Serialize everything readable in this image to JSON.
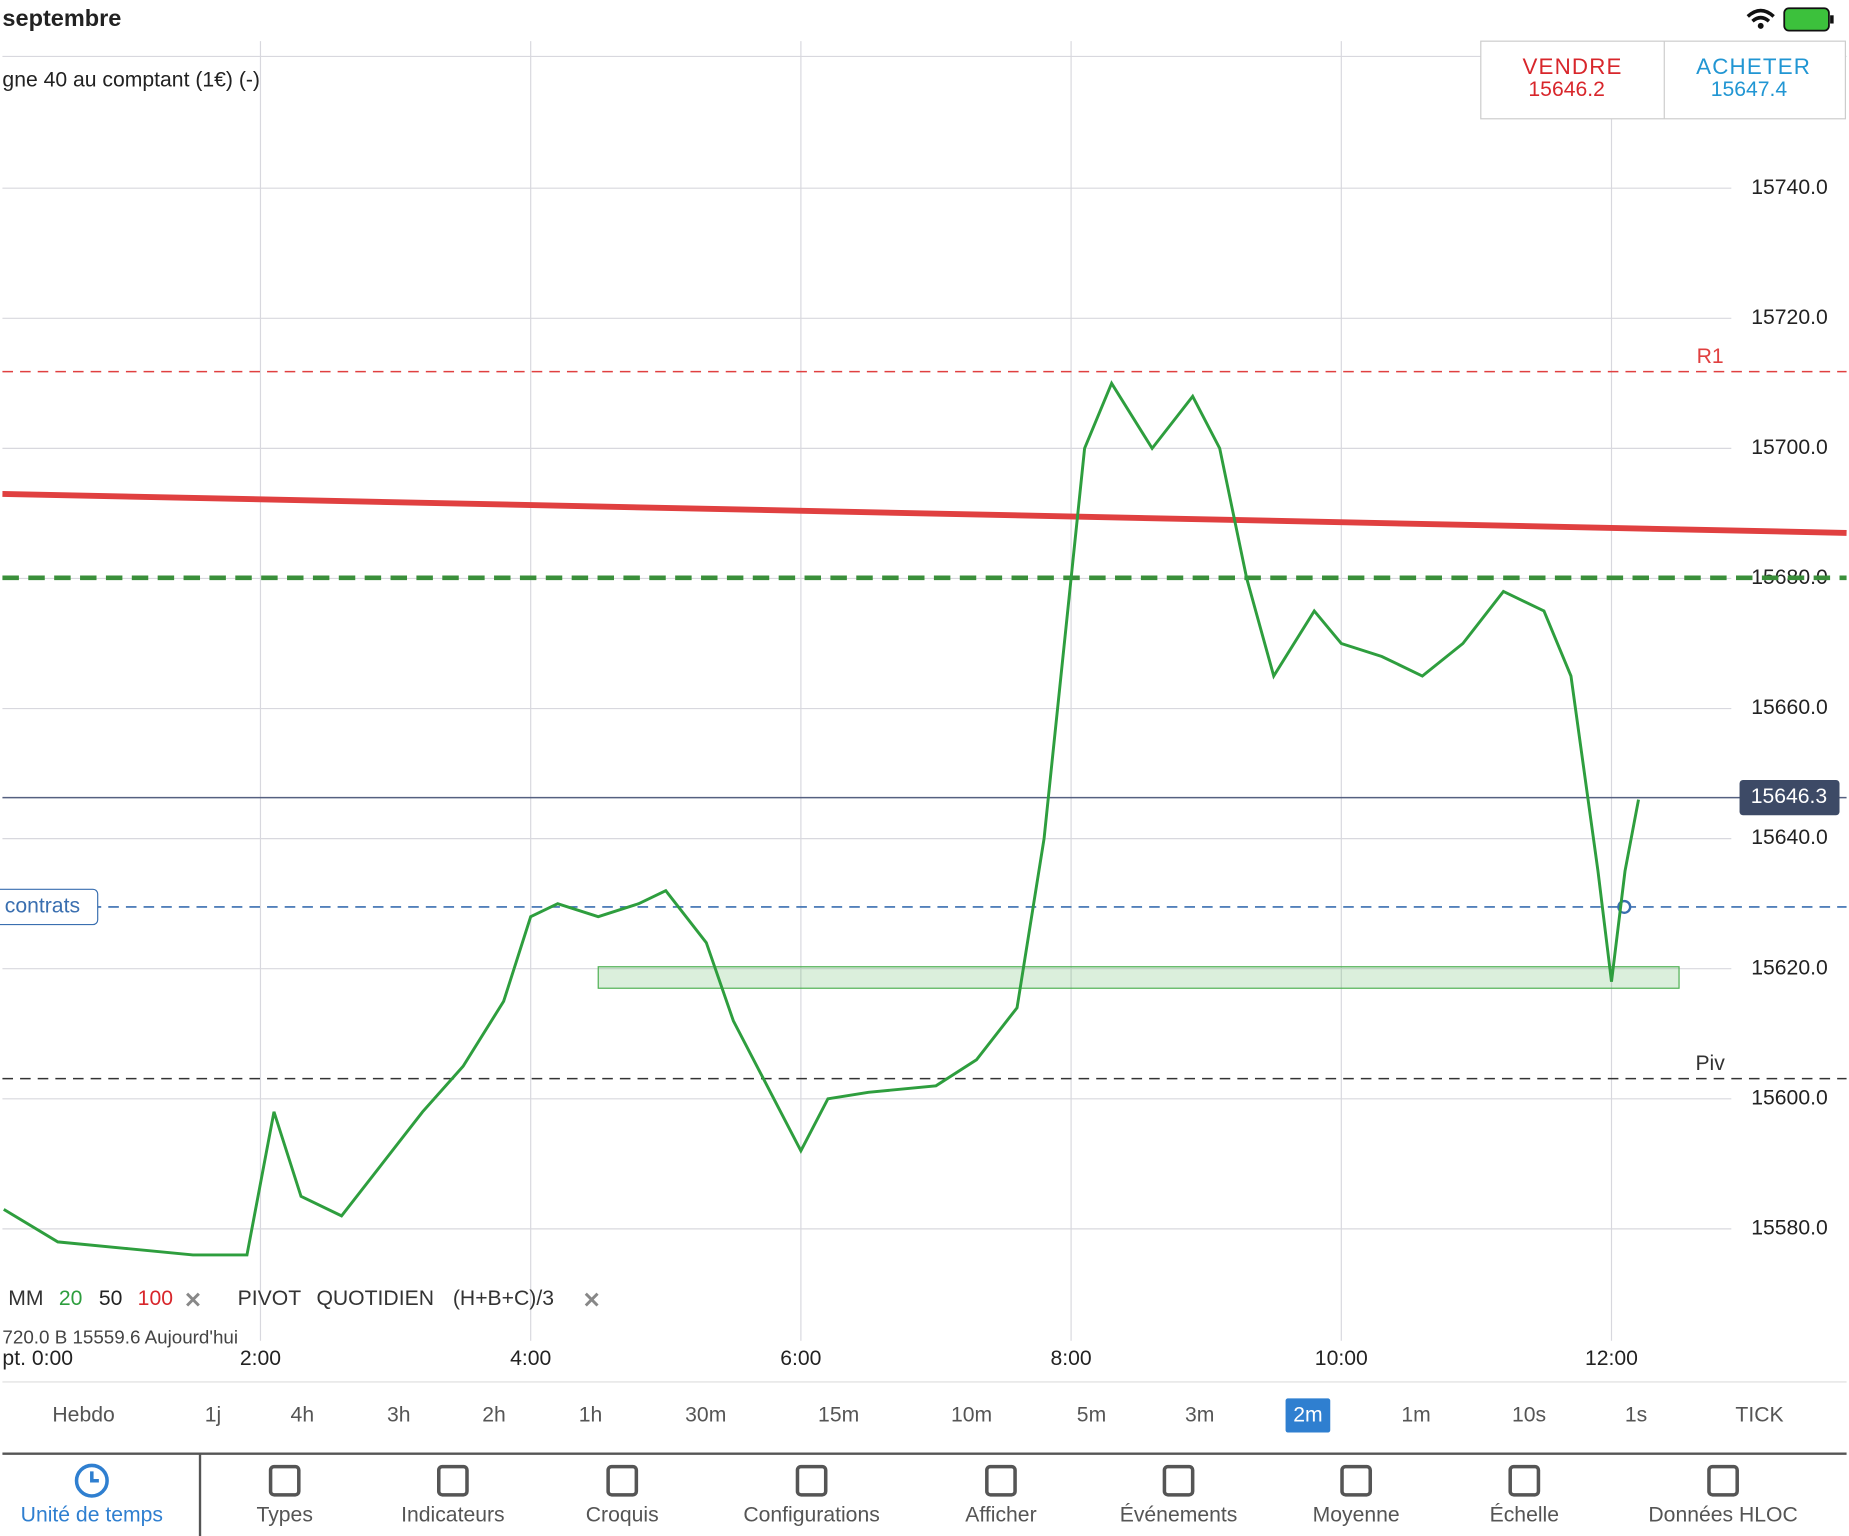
{
  "status_bar": {
    "date": "septembre"
  },
  "header": {
    "instrument": "gne 40 au comptant (1€) (-)",
    "ohlc_info": "720.0    B 15559.6    Aujourd'hui"
  },
  "quote": {
    "sell_label": "VENDRE",
    "sell": "15646.2",
    "buy_label": "ACHETER",
    "buy": "15647.4"
  },
  "chart_data": {
    "type": "line",
    "x": [
      0.1,
      0.5,
      1.0,
      1.5,
      1.9,
      2.1,
      2.3,
      2.6,
      2.9,
      3.2,
      3.5,
      3.8,
      4.0,
      4.2,
      4.5,
      4.8,
      5.0,
      5.3,
      5.5,
      5.8,
      6.0,
      6.2,
      6.5,
      7.0,
      7.3,
      7.6,
      7.8,
      8.0,
      8.1,
      8.3,
      8.6,
      8.9,
      9.1,
      9.3,
      9.5,
      9.8,
      10.0,
      10.3,
      10.6,
      10.9,
      11.2,
      11.5,
      11.7,
      11.9,
      12.0,
      12.1,
      12.2
    ],
    "series": [
      {
        "color": "#2e9e3e",
        "values": [
          15583,
          15578,
          15577,
          15576,
          15576,
          15598,
          15585,
          15582,
          15590,
          15598,
          15605,
          15615,
          15628,
          15630,
          15628,
          15630,
          15632,
          15624,
          15612,
          15600,
          15592,
          15600,
          15601,
          15602,
          15606,
          15614,
          15640,
          15680,
          15700,
          15710,
          15700,
          15708,
          15700,
          15680,
          15665,
          15675,
          15670,
          15668,
          15665,
          15670,
          15678,
          15675,
          15665,
          15635,
          15618,
          15635,
          15646
        ]
      }
    ],
    "xlim": [
      0.09,
      13.74
    ],
    "ylim": [
      15562.8,
      15761.7
    ],
    "xticks": [
      {
        "value": 2,
        "label": "2:00"
      },
      {
        "value": 4,
        "label": "4:00"
      },
      {
        "value": 6,
        "label": "6:00"
      },
      {
        "value": 8,
        "label": "8:00"
      },
      {
        "value": 10,
        "label": "10:00"
      },
      {
        "value": 12,
        "label": "12:00"
      }
    ],
    "yticks": [
      {
        "value": 15580,
        "label": "15580.0"
      },
      {
        "value": 15600,
        "label": "15600.0"
      },
      {
        "value": 15620,
        "label": "15620.0"
      },
      {
        "value": 15640,
        "label": "15640.0"
      },
      {
        "value": 15660,
        "label": "15660.0"
      },
      {
        "value": 15680,
        "label": "15680.0"
      },
      {
        "value": 15700,
        "label": "15700.0"
      },
      {
        "value": 15720,
        "label": "15720.0"
      },
      {
        "value": 15740,
        "label": "15740.0"
      }
    ],
    "grid": true,
    "levels": [
      {
        "label": "R1",
        "value": 15711.8,
        "color": "#e04040",
        "dash": true
      },
      {
        "label": "Piv",
        "value": 15603.1,
        "color": "#333333",
        "dash": true
      },
      {
        "value": 15680.1,
        "color": "#3a8f3a",
        "dash": true
      },
      {
        "label": "contrats",
        "value": 15629.5,
        "color": "#3a6fb0",
        "dash": true
      },
      {
        "value": 15646.3,
        "color": "#556080",
        "dash": false
      }
    ],
    "trend_line": {
      "x": [
        0.09,
        13.74
      ],
      "values": [
        15693,
        15687
      ],
      "color": "#e04040"
    },
    "zone": {
      "x": [
        4.5,
        12.5
      ],
      "values": [
        15617,
        15620.3
      ],
      "color": "#4caf50"
    },
    "x_start_label": "pt. 0:00"
  },
  "legend": {
    "items": [
      "MM",
      "20",
      "50",
      "100"
    ],
    "pivot": [
      "PIVOT",
      "QUOTIDIEN",
      "(H+B+C)/3"
    ]
  },
  "timeframes": {
    "items": [
      "Hebdo",
      "1j",
      "4h",
      "3h",
      "2h",
      "1h",
      "30m",
      "15m",
      "10m",
      "5m",
      "3m",
      "2m",
      "1m",
      "10s",
      "1s",
      "TICK"
    ],
    "selected_index": 11
  },
  "toolbar": {
    "items": [
      "Unité de temps",
      "Types",
      "Indicateurs",
      "Croquis",
      "Configurations",
      "Afficher",
      "Événements",
      "Moyenne",
      "Échelle",
      "Données HLOC"
    ]
  }
}
